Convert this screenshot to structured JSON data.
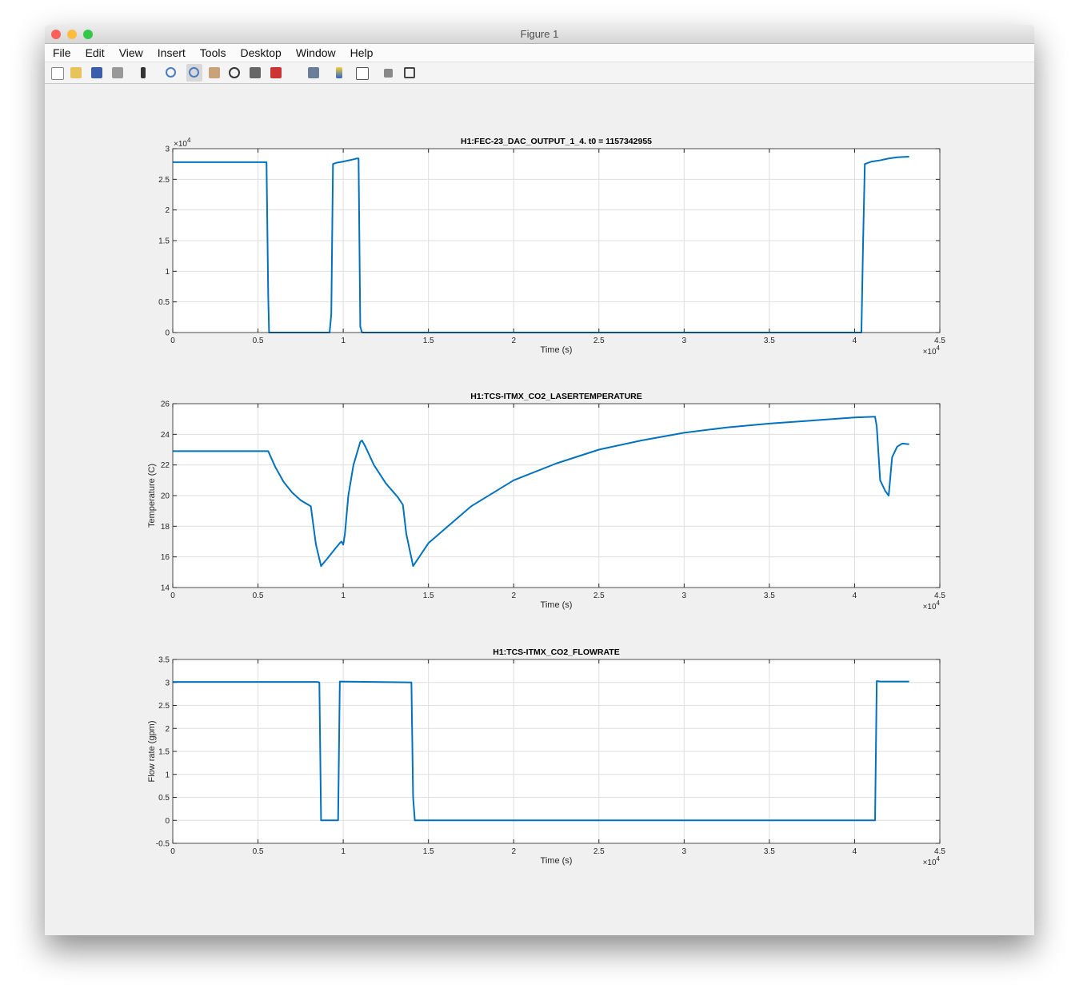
{
  "window": {
    "title": "Figure 1",
    "menu": [
      "File",
      "Edit",
      "View",
      "Insert",
      "Tools",
      "Desktop",
      "Window",
      "Help"
    ]
  },
  "chart_data": [
    {
      "type": "line",
      "title": "H1:FEC-23_DAC_OUTPUT_1_4. t0 = 1157342955",
      "xlabel": "Time (s)",
      "x_multiplier": {
        "base": "×10",
        "exponent": "4"
      },
      "y_multiplier": {
        "base": "×10",
        "exponent": "4"
      },
      "xlim": [
        0,
        4.5
      ],
      "xticks": [
        0,
        0.5,
        1,
        1.5,
        2,
        2.5,
        3,
        3.5,
        4,
        4.5
      ],
      "ylim": [
        0,
        3
      ],
      "yticks": [
        0,
        0.5,
        1,
        1.5,
        2,
        2.5,
        3
      ],
      "grid": true,
      "color": "#0072bd",
      "x": [
        0,
        0.55,
        0.56,
        0.565,
        0.92,
        0.93,
        0.94,
        0.96,
        1.0,
        1.05,
        1.08,
        1.09,
        1.1,
        1.11,
        4.04,
        4.05,
        4.06,
        4.1,
        4.15,
        4.2,
        4.25,
        4.32
      ],
      "values": [
        2.78,
        2.78,
        0.6,
        0,
        0,
        0.3,
        2.75,
        2.77,
        2.79,
        2.82,
        2.84,
        2.84,
        0.1,
        0,
        0,
        1.5,
        2.75,
        2.79,
        2.81,
        2.84,
        2.86,
        2.87
      ]
    },
    {
      "type": "line",
      "title": "H1:TCS-ITMX_CO2_LASERTEMPERATURE",
      "xlabel": "Time (s)",
      "ylabel": "Temperature (C)",
      "x_multiplier": {
        "base": "×10",
        "exponent": "4"
      },
      "xlim": [
        0,
        4.5
      ],
      "xticks": [
        0,
        0.5,
        1,
        1.5,
        2,
        2.5,
        3,
        3.5,
        4,
        4.5
      ],
      "ylim": [
        14,
        26
      ],
      "yticks": [
        14,
        16,
        18,
        20,
        22,
        24,
        26
      ],
      "grid": true,
      "color": "#0072bd",
      "x": [
        0,
        0.56,
        0.6,
        0.65,
        0.7,
        0.75,
        0.81,
        0.84,
        0.87,
        0.9,
        0.95,
        0.98,
        0.99,
        1.0,
        1.01,
        1.03,
        1.06,
        1.1,
        1.11,
        1.13,
        1.18,
        1.25,
        1.32,
        1.35,
        1.37,
        1.41,
        1.5,
        1.75,
        2.0,
        2.25,
        2.5,
        2.75,
        3.0,
        3.25,
        3.5,
        3.75,
        4.0,
        4.12,
        4.13,
        4.15,
        4.18,
        4.2,
        4.22,
        4.25,
        4.28,
        4.32
      ],
      "values": [
        22.9,
        22.9,
        21.9,
        20.9,
        20.2,
        19.7,
        19.3,
        16.8,
        15.4,
        15.8,
        16.5,
        16.9,
        17.0,
        16.8,
        17.5,
        20.0,
        22.0,
        23.5,
        23.6,
        23.2,
        22.0,
        20.8,
        19.9,
        19.4,
        17.5,
        15.4,
        16.9,
        19.3,
        21.0,
        22.1,
        23.0,
        23.6,
        24.1,
        24.45,
        24.7,
        24.9,
        25.1,
        25.15,
        24.5,
        21.0,
        20.3,
        20.0,
        22.5,
        23.2,
        23.4,
        23.35
      ]
    },
    {
      "type": "line",
      "title": "H1:TCS-ITMX_CO2_FLOWRATE",
      "xlabel": "Time (s)",
      "ylabel": "Flow rate (gpm)",
      "x_multiplier": {
        "base": "×10",
        "exponent": "4"
      },
      "xlim": [
        0,
        4.5
      ],
      "xticks": [
        0,
        0.5,
        1,
        1.5,
        2,
        2.5,
        3,
        3.5,
        4,
        4.5
      ],
      "ylim": [
        -0.5,
        3.5
      ],
      "yticks": [
        -0.5,
        0,
        0.5,
        1,
        1.5,
        2,
        2.5,
        3,
        3.5
      ],
      "grid": true,
      "color": "#0072bd",
      "x": [
        0,
        0.85,
        0.86,
        0.87,
        0.97,
        0.98,
        1.4,
        1.41,
        1.42,
        4.12,
        4.13,
        4.15,
        4.32
      ],
      "values": [
        3.01,
        3.01,
        3.0,
        0,
        0,
        3.02,
        3.0,
        0.5,
        0,
        0,
        3.03,
        3.02,
        3.02
      ]
    }
  ]
}
